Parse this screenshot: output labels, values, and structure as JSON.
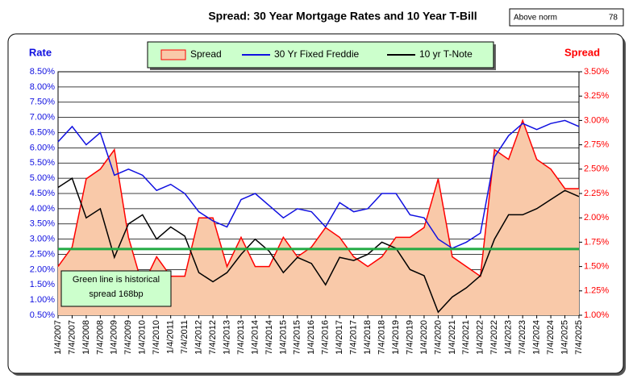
{
  "chart_data": {
    "type": "line",
    "title": "Spread:  30 Year Mortgage Rates and 10 Year T-Bill",
    "badge": {
      "label": "Above norm",
      "value": 78
    },
    "y_label": "Rate",
    "y2_label": "Spread",
    "categories": [
      "1/4/2007",
      "7/4/2007",
      "1/4/2008",
      "7/4/2008",
      "1/4/2009",
      "7/4/2009",
      "1/4/2010",
      "7/4/2010",
      "1/4/2011",
      "7/4/2011",
      "1/4/2012",
      "7/4/2012",
      "1/4/2013",
      "7/4/2013",
      "1/4/2014",
      "7/4/2014",
      "1/4/2015",
      "7/4/2015",
      "1/4/2016",
      "7/4/2016",
      "1/4/2017",
      "7/4/2017",
      "1/4/2018",
      "7/4/2018",
      "1/4/2019",
      "7/4/2019",
      "1/4/2020",
      "7/4/2020",
      "1/4/2021",
      "7/4/2021",
      "1/4/2022",
      "7/4/2022",
      "1/4/2023",
      "7/4/2023",
      "1/4/2024",
      "7/4/2024",
      "1/4/2025",
      "7/4/2025"
    ],
    "series": [
      {
        "name": "Spread",
        "color": "#ff0000",
        "fill": "#f9c9a9",
        "axis": "y2",
        "area": true,
        "values": [
          1.5,
          1.7,
          2.4,
          2.5,
          2.7,
          1.8,
          1.3,
          1.6,
          1.4,
          1.4,
          2.0,
          2.0,
          1.5,
          1.8,
          1.5,
          1.5,
          1.8,
          1.6,
          1.7,
          1.9,
          1.8,
          1.6,
          1.5,
          1.6,
          1.8,
          1.8,
          1.9,
          2.4,
          1.6,
          1.5,
          1.4,
          2.7,
          2.6,
          3.0,
          2.6,
          2.5,
          2.3,
          2.3
        ]
      },
      {
        "name": "30 Yr Fixed Freddie",
        "color": "#1010e0",
        "values": [
          6.2,
          6.7,
          6.1,
          6.5,
          5.1,
          5.3,
          5.1,
          4.6,
          4.8,
          4.5,
          3.9,
          3.6,
          3.4,
          4.3,
          4.5,
          4.1,
          3.7,
          4.0,
          3.9,
          3.4,
          4.2,
          3.9,
          4.0,
          4.5,
          4.5,
          3.8,
          3.7,
          3.0,
          2.7,
          2.9,
          3.2,
          5.7,
          6.4,
          6.8,
          6.6,
          6.8,
          6.9,
          6.7
        ]
      },
      {
        "name": "10 yr T-Note",
        "color": "#000000",
        "values": [
          4.7,
          5.0,
          3.7,
          4.0,
          2.4,
          3.5,
          3.8,
          3.0,
          3.4,
          3.1,
          1.9,
          1.6,
          1.9,
          2.5,
          3.0,
          2.6,
          1.9,
          2.4,
          2.2,
          1.5,
          2.4,
          2.3,
          2.5,
          2.9,
          2.7,
          2.0,
          1.8,
          0.6,
          1.1,
          1.4,
          1.8,
          3.0,
          3.8,
          3.8,
          4.0,
          4.3,
          4.6,
          4.4
        ]
      }
    ],
    "norm_line": {
      "value": 1.68,
      "axis": "y2",
      "color": "#22aa44"
    },
    "annotation": "Green line is historical spread 168bp",
    "ylim": [
      0.5,
      8.5
    ],
    "yticks": [
      {
        "value": 0.5,
        "label": "0.50%"
      },
      {
        "value": 1.0,
        "label": "1.00%"
      },
      {
        "value": 1.5,
        "label": "1.50%"
      },
      {
        "value": 2.0,
        "label": "2.00%"
      },
      {
        "value": 2.5,
        "label": "2.50%"
      },
      {
        "value": 3.0,
        "label": "3.00%"
      },
      {
        "value": 3.5,
        "label": "3.50%"
      },
      {
        "value": 4.0,
        "label": "4.00%"
      },
      {
        "value": 4.5,
        "label": "4.50%"
      },
      {
        "value": 5.0,
        "label": "5.00%"
      },
      {
        "value": 5.5,
        "label": "5.50%"
      },
      {
        "value": 6.0,
        "label": "6.00%"
      },
      {
        "value": 6.5,
        "label": "6.50%"
      },
      {
        "value": 7.0,
        "label": "7.00%"
      },
      {
        "value": 7.5,
        "label": "7.50%"
      },
      {
        "value": 8.0,
        "label": "8.00%"
      },
      {
        "value": 8.5,
        "label": "8.50%"
      }
    ],
    "y2lim": [
      1.0,
      3.5
    ],
    "y2ticks": [
      {
        "value": 1.0,
        "label": "1.00%"
      },
      {
        "value": 1.25,
        "label": "1.25%"
      },
      {
        "value": 1.5,
        "label": "1.50%"
      },
      {
        "value": 1.75,
        "label": "1.75%"
      },
      {
        "value": 2.0,
        "label": "2.00%"
      },
      {
        "value": 2.25,
        "label": "2.25%"
      },
      {
        "value": 2.5,
        "label": "2.50%"
      },
      {
        "value": 2.75,
        "label": "2.75%"
      },
      {
        "value": 3.0,
        "label": "3.00%"
      },
      {
        "value": 3.25,
        "label": "3.25%"
      },
      {
        "value": 3.5,
        "label": "3.50%"
      }
    ],
    "grid": true
  }
}
